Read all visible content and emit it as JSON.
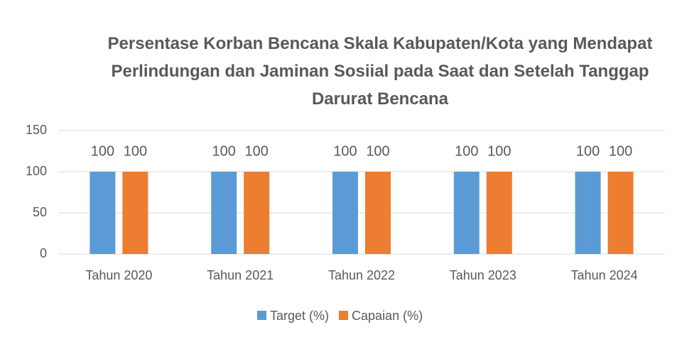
{
  "chart_data": {
    "type": "bar",
    "title": "Persentase Korban Bencana Skala Kabupaten/Kota yang Mendapat Perlindungan dan Jaminan Sosiial pada Saat dan Setelah Tanggap Darurat Bencana",
    "categories": [
      "Tahun 2020",
      "Tahun 2021",
      "Tahun 2022",
      "Tahun 2023",
      "Tahun 2024"
    ],
    "series": [
      {
        "name": "Target (%)",
        "color": "#5b9bd5",
        "values": [
          100,
          100,
          100,
          100,
          100
        ]
      },
      {
        "name": "Capaian (%)",
        "color": "#ed7d31",
        "values": [
          100,
          100,
          100,
          100,
          100
        ]
      }
    ],
    "ylim": [
      0,
      150
    ],
    "yticks": [
      0,
      50,
      100,
      150
    ],
    "grid": true,
    "legend": "bottom",
    "data_labels": true
  }
}
